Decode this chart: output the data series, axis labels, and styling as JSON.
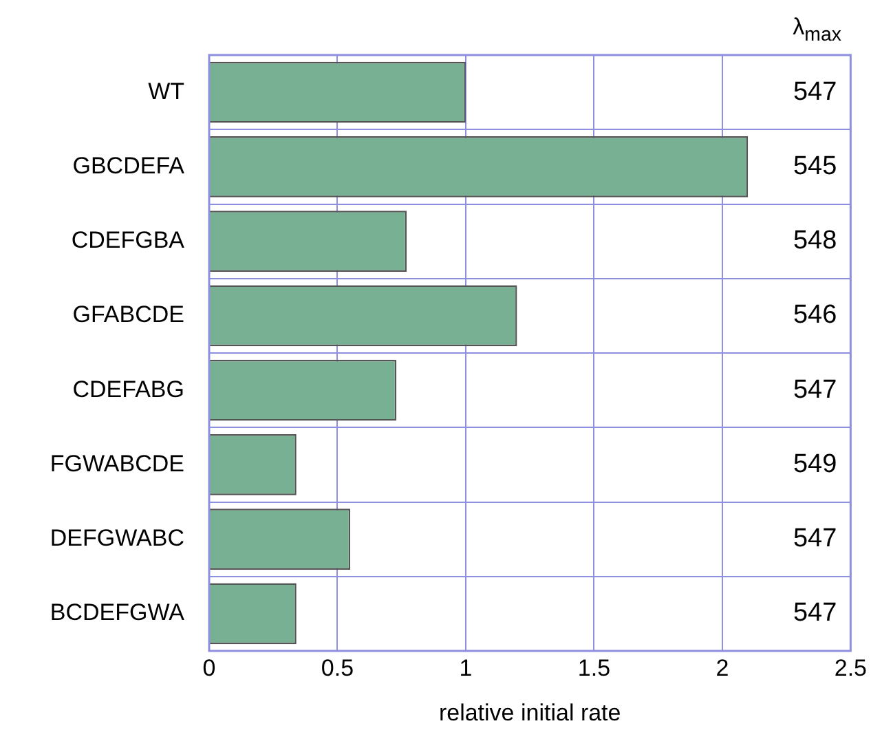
{
  "chart_data": {
    "type": "bar",
    "orientation": "horizontal",
    "xlabel": "relative initial rate",
    "categories": [
      "WT",
      "GBCDEFA",
      "CDEFGBA",
      "GFABCDE",
      "CDEFABG",
      "FGWABCDE",
      "DEFGWABC",
      "BCDEFGWA"
    ],
    "values": [
      1.0,
      2.1,
      0.77,
      1.2,
      0.73,
      0.34,
      0.55,
      0.34
    ],
    "color": "#78b094",
    "xlim": [
      0,
      2.5
    ],
    "xticks": [
      0,
      0.5,
      1,
      1.5,
      2,
      2.5
    ],
    "grid": true,
    "legend": false,
    "annotations": [
      "λ$_{max}$",
      "547",
      "545",
      "548",
      "546",
      "547",
      "549",
      "547",
      "547"
    ]
  }
}
